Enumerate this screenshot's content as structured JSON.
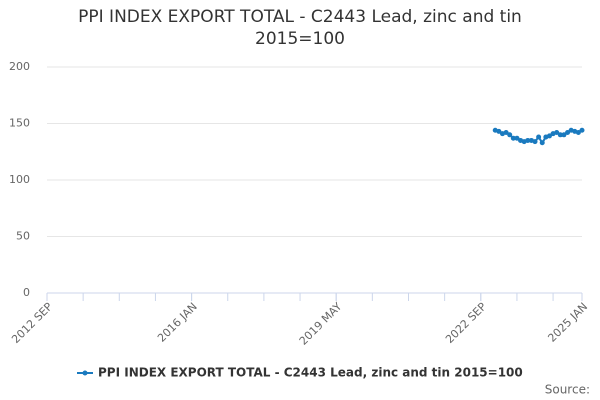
{
  "chart_data": {
    "type": "line",
    "title": "PPI INDEX EXPORT TOTAL - C2443 Lead, zinc and tin 2015=100",
    "source": "Source:",
    "categories": [
      "2012 SEP",
      null,
      null,
      null,
      null,
      null,
      null,
      null,
      null,
      null,
      null,
      null,
      null,
      null,
      null,
      null,
      null,
      null,
      null,
      null,
      null,
      null,
      null,
      null,
      null,
      null,
      null,
      null,
      null,
      null,
      null,
      null,
      null,
      null,
      null,
      null,
      null,
      null,
      null,
      null,
      "2016 JAN",
      null,
      null,
      null,
      null,
      null,
      null,
      null,
      null,
      null,
      null,
      null,
      null,
      null,
      null,
      null,
      null,
      null,
      null,
      null,
      null,
      null,
      null,
      null,
      null,
      null,
      null,
      null,
      null,
      null,
      null,
      null,
      null,
      null,
      null,
      null,
      null,
      null,
      null,
      null,
      "2019 MAY",
      null,
      null,
      null,
      null,
      null,
      null,
      null,
      null,
      null,
      null,
      null,
      null,
      null,
      null,
      null,
      null,
      null,
      null,
      null,
      null,
      null,
      null,
      null,
      null,
      null,
      null,
      null,
      null,
      null,
      null,
      null,
      null,
      null,
      null,
      null,
      null,
      null,
      null,
      null,
      "2022 SEP",
      null,
      null,
      null,
      null,
      null,
      null,
      null,
      null,
      null,
      null,
      null,
      null,
      null,
      null,
      null,
      null,
      null,
      null,
      null,
      null,
      null,
      null,
      null,
      null,
      null,
      null,
      null,
      "2025 JAN"
    ],
    "series": [
      {
        "name": "PPI INDEX EXPORT TOTAL - C2443 Lead, zinc and tin 2015=100",
        "color": "#1a7abf",
        "values": [
          null,
          null,
          null,
          null,
          null,
          null,
          null,
          null,
          null,
          null,
          null,
          null,
          null,
          null,
          null,
          null,
          null,
          null,
          null,
          null,
          null,
          null,
          null,
          null,
          null,
          null,
          null,
          null,
          null,
          null,
          null,
          null,
          null,
          null,
          null,
          null,
          null,
          null,
          null,
          null,
          null,
          null,
          null,
          null,
          null,
          null,
          null,
          null,
          null,
          null,
          null,
          null,
          null,
          null,
          null,
          null,
          null,
          null,
          null,
          null,
          null,
          null,
          null,
          null,
          null,
          null,
          null,
          null,
          null,
          null,
          null,
          null,
          null,
          null,
          null,
          null,
          null,
          null,
          null,
          null,
          null,
          null,
          null,
          null,
          null,
          null,
          null,
          null,
          null,
          null,
          null,
          null,
          null,
          null,
          null,
          null,
          null,
          null,
          null,
          null,
          null,
          null,
          null,
          null,
          null,
          null,
          null,
          null,
          null,
          null,
          null,
          null,
          null,
          null,
          null,
          null,
          null,
          null,
          null,
          null,
          null,
          null,
          null,
          null,
          144,
          143,
          141,
          142,
          140,
          137,
          137,
          135,
          134,
          135,
          135,
          134,
          138,
          133,
          138,
          139,
          141,
          142,
          140,
          140,
          142,
          144,
          143,
          142,
          144
        ]
      }
    ],
    "ylim": [
      0,
      200
    ],
    "yticks": [
      0,
      50,
      100,
      150,
      200
    ],
    "grid": true
  }
}
